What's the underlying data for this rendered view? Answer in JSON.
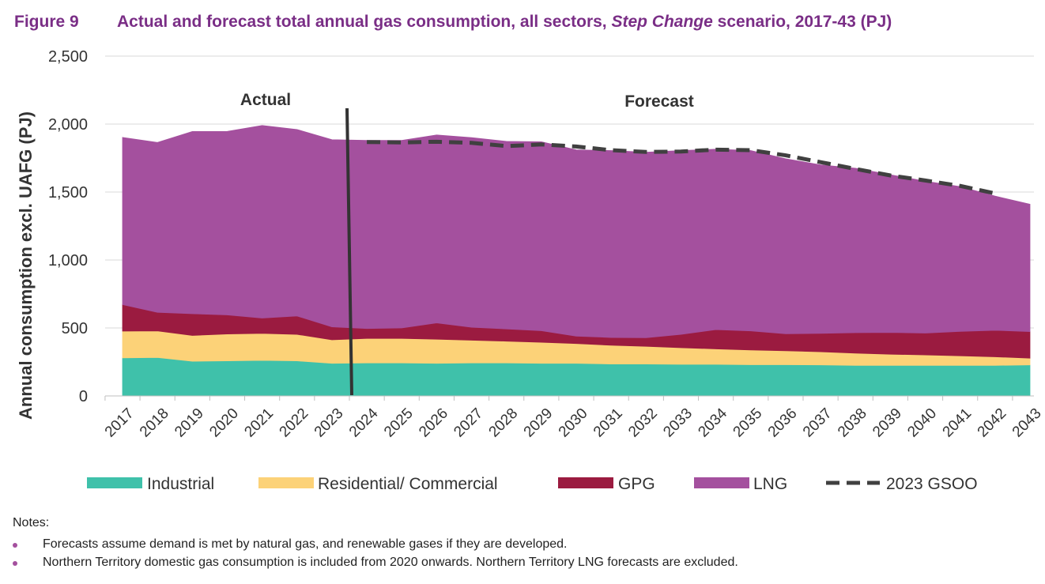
{
  "header": {
    "figure_number": "Figure 9",
    "title_part1": "Actual and forecast total annual gas consumption, all sectors, ",
    "title_italic": "Step Change",
    "title_part2": " scenario, 2017-43 (PJ)"
  },
  "chart_data": {
    "type": "area",
    "stacked": true,
    "title": "Actual and forecast total annual gas consumption, all sectors, Step Change scenario, 2017-43 (PJ)",
    "ylabel": "Annual consumption excl. UAFG (PJ)",
    "xlabel": "",
    "ylim": [
      0,
      2500
    ],
    "yticks": [
      0,
      500,
      1000,
      1500,
      2000,
      2500
    ],
    "ytick_labels": [
      "0",
      "500",
      "1,000",
      "1,500",
      "2,000",
      "2,500"
    ],
    "grid": true,
    "categories": [
      "2017",
      "2018",
      "2019",
      "2020",
      "2021",
      "2022",
      "2023",
      "2024",
      "2025",
      "2026",
      "2027",
      "2028",
      "2029",
      "2030",
      "2031",
      "2032",
      "2033",
      "2034",
      "2035",
      "2036",
      "2037",
      "2038",
      "2039",
      "2040",
      "2041",
      "2042",
      "2043"
    ],
    "series": [
      {
        "name": "Industrial",
        "color": "#3fc1aa",
        "values": [
          280,
          283,
          255,
          258,
          262,
          258,
          240,
          243,
          243,
          240,
          243,
          243,
          240,
          240,
          235,
          235,
          233,
          233,
          230,
          230,
          228,
          225,
          225,
          225,
          225,
          225,
          228
        ]
      },
      {
        "name": "Residential/ Commercial",
        "color": "#fcd278",
        "values": [
          197,
          195,
          190,
          198,
          198,
          195,
          173,
          180,
          180,
          177,
          167,
          160,
          155,
          145,
          138,
          130,
          122,
          113,
          108,
          102,
          97,
          90,
          82,
          77,
          70,
          63,
          50
        ]
      },
      {
        "name": "GPG",
        "color": "#9b1b40",
        "values": [
          195,
          137,
          160,
          140,
          113,
          135,
          95,
          73,
          77,
          120,
          95,
          90,
          85,
          55,
          57,
          63,
          98,
          142,
          140,
          125,
          135,
          150,
          160,
          160,
          180,
          195,
          195
        ]
      },
      {
        "name": "LNG",
        "color": "#a4509e",
        "values": [
          1230,
          1250,
          1340,
          1350,
          1417,
          1372,
          1377,
          1384,
          1380,
          1383,
          1395,
          1380,
          1390,
          1370,
          1375,
          1365,
          1352,
          1327,
          1327,
          1288,
          1240,
          1210,
          1160,
          1118,
          1065,
          987,
          937
        ]
      }
    ],
    "gsoo_line": {
      "name": "2023 GSOO",
      "color": "#404040",
      "x": [
        "2024",
        "2025",
        "2026",
        "2027",
        "2028",
        "2029",
        "2030",
        "2031",
        "2032",
        "2033",
        "2034",
        "2035",
        "2036",
        "2037",
        "2038",
        "2039",
        "2040",
        "2041",
        "2042"
      ],
      "values": [
        1868,
        1865,
        1870,
        1862,
        1838,
        1850,
        1835,
        1808,
        1795,
        1798,
        1812,
        1808,
        1770,
        1720,
        1670,
        1622,
        1585,
        1545,
        1490
      ]
    },
    "divider": {
      "at": "2023-2024",
      "left_label": "Actual",
      "right_label": "Forecast"
    },
    "legend": {
      "position": "bottom"
    }
  },
  "notes": {
    "title": "Notes:",
    "items": [
      "Forecasts assume demand is met by natural gas, and renewable gases if they are developed.",
      "Northern Territory domestic gas consumption is included from 2020 onwards. Northern Territory LNG forecasts are excluded."
    ],
    "bullet_color": "#a4509e"
  }
}
